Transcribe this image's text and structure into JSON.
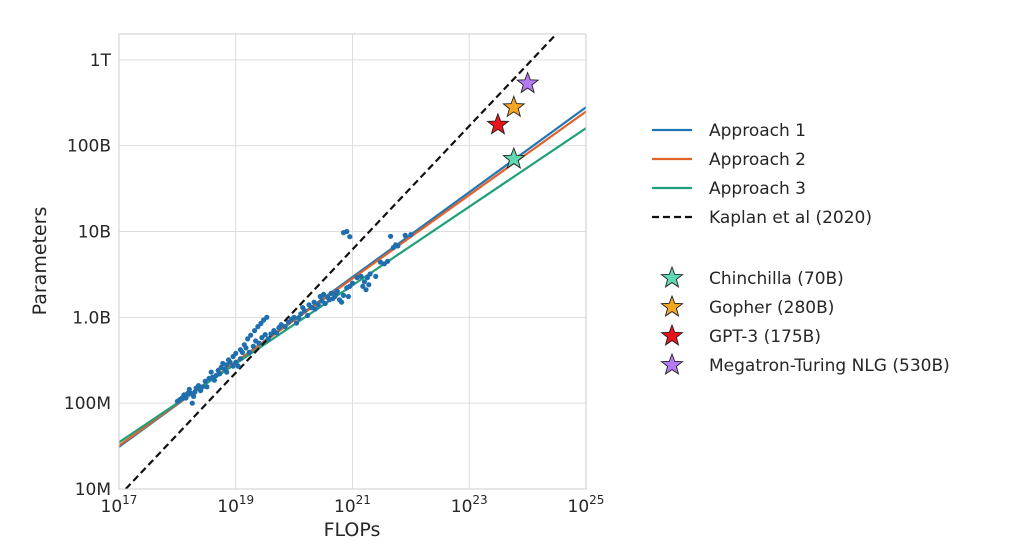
{
  "chart_data": {
    "type": "scatter",
    "xlabel": "FLOPs",
    "ylabel": "Parameters",
    "x_scale": "log",
    "y_scale": "log",
    "xlim": [
      1e+17,
      1e+25
    ],
    "ylim": [
      10000000.0,
      2000000000000.0
    ],
    "grid": true,
    "x_ticks": [
      {
        "value": 1e+17,
        "base": "10",
        "exp": "17"
      },
      {
        "value": 1e+19,
        "base": "10",
        "exp": "19"
      },
      {
        "value": 1e+21,
        "base": "10",
        "exp": "21"
      },
      {
        "value": 1e+23,
        "base": "10",
        "exp": "23"
      },
      {
        "value": 1e+25,
        "base": "10",
        "exp": "25"
      }
    ],
    "y_ticks": [
      {
        "value": 10000000.0,
        "label": "10M"
      },
      {
        "value": 100000000.0,
        "label": "100M"
      },
      {
        "value": 1000000000.0,
        "label": "1.0B"
      },
      {
        "value": 10000000000.0,
        "label": "10B"
      },
      {
        "value": 100000000000.0,
        "label": "100B"
      },
      {
        "value": 1000000000000.0,
        "label": "1T"
      }
    ],
    "lines": [
      {
        "name": "Approach 1",
        "color": "#1f77b4",
        "dash": "solid",
        "points": [
          [
            1e+17,
            31000000.0
          ],
          [
            1e+25,
            280000000000.0
          ]
        ]
      },
      {
        "name": "Approach 2",
        "color": "#e1612b",
        "dash": "solid",
        "points": [
          [
            1e+17,
            32000000.0
          ],
          [
            1e+25,
            250000000000.0
          ]
        ]
      },
      {
        "name": "Approach 3",
        "color": "#20a07a",
        "dash": "solid",
        "points": [
          [
            1e+17,
            35000000.0
          ],
          [
            1e+25,
            160000000000.0
          ]
        ]
      },
      {
        "name": "Kaplan et al (2020)",
        "color": "#111111",
        "dash": "dashed",
        "points": [
          [
            1.3e+17,
            10000000.0
          ],
          [
            3e+24,
            1950000000000.0
          ]
        ]
      }
    ],
    "scatter_series": {
      "color": "#1f6fae",
      "points": [
        [
          1e+18,
          105000000.0
        ],
        [
          1.1e+18,
          110000000.0
        ],
        [
          1.2e+18,
          115000000.0
        ],
        [
          1.3e+18,
          125000000.0
        ],
        [
          1.4e+18,
          115000000.0
        ],
        [
          1.5e+18,
          130000000.0
        ],
        [
          1.6e+18,
          145000000.0
        ],
        [
          1.7e+18,
          130000000.0
        ],
        [
          1.8e+18,
          100000000.0
        ],
        [
          1.9e+18,
          120000000.0
        ],
        [
          2e+18,
          135000000.0
        ],
        [
          2.1e+18,
          150000000.0
        ],
        [
          2.3e+18,
          160000000.0
        ],
        [
          2.5e+18,
          140000000.0
        ],
        [
          2.7e+18,
          155000000.0
        ],
        [
          3e+18,
          180000000.0
        ],
        [
          3.2e+18,
          155000000.0
        ],
        [
          3.5e+18,
          195000000.0
        ],
        [
          3.8e+18,
          230000000.0
        ],
        [
          4e+18,
          200000000.0
        ],
        [
          4.3e+18,
          185000000.0
        ],
        [
          4.6e+18,
          210000000.0
        ],
        [
          5e+18,
          240000000.0
        ],
        [
          5.3e+18,
          220000000.0
        ],
        [
          5.6e+18,
          260000000.0
        ],
        [
          6e+18,
          290000000.0
        ],
        [
          6.5e+18,
          250000000.0
        ],
        [
          7e+18,
          280000000.0
        ],
        [
          7.5e+18,
          320000000.0
        ],
        [
          8e+18,
          300000000.0
        ],
        [
          9e+18,
          270000000.0
        ],
        [
          1e+19,
          300000000.0
        ],
        [
          1.1e+19,
          270000000.0
        ],
        [
          1.2e+19,
          330000000.0
        ],
        [
          1.3e+19,
          390000000.0
        ],
        [
          1.5e+19,
          440000000.0
        ],
        [
          1.7e+19,
          390000000.0
        ],
        [
          2e+19,
          460000000.0
        ],
        [
          2.2e+19,
          530000000.0
        ],
        [
          2.5e+19,
          500000000.0
        ],
        [
          2.8e+19,
          580000000.0
        ],
        [
          3.2e+19,
          630000000.0
        ],
        [
          3.6e+19,
          560000000.0
        ],
        [
          4e+19,
          640000000.0
        ],
        [
          4.5e+19,
          700000000.0
        ],
        [
          5e+19,
          660000000.0
        ],
        [
          5.5e+19,
          760000000.0
        ],
        [
          6e+19,
          820000000.0
        ],
        [
          7e+19,
          780000000.0
        ],
        [
          8e+19,
          880000000.0
        ],
        [
          9e+19,
          950000000.0
        ],
        [
          1e+20,
          1000000000.0
        ],
        [
          1.1e+20,
          860000000.0
        ],
        [
          1.2e+20,
          980000000.0
        ],
        [
          1.3e+20,
          1100000000.0
        ],
        [
          1.5e+20,
          1200000000.0
        ],
        [
          1.7e+20,
          1050000000.0
        ],
        [
          2e+20,
          1300000000.0
        ],
        [
          2.3e+20,
          1250000000.0
        ],
        [
          2.6e+20,
          1400000000.0
        ],
        [
          3e+20,
          1550000000.0
        ],
        [
          3.4e+20,
          1450000000.0
        ],
        [
          3.8e+20,
          1700000000.0
        ],
        [
          4.3e+20,
          1900000000.0
        ],
        [
          5e+20,
          1750000000.0
        ],
        [
          5.5e+20,
          2000000000.0
        ],
        [
          6e+20,
          1600000000.0
        ],
        [
          7e+20,
          1800000000.0
        ],
        [
          8e+20,
          2200000000.0
        ],
        [
          9e+20,
          2300000000.0
        ],
        [
          1e+21,
          2500000000.0
        ],
        [
          1.2e+21,
          2900000000.0
        ],
        [
          1.4e+21,
          3000000000.0
        ],
        [
          1.6e+21,
          2600000000.0
        ],
        [
          1.8e+21,
          2900000000.0
        ],
        [
          2e+21,
          3200000000.0
        ],
        [
          1.2e+19,
          420000000.0
        ],
        [
          1.4e+19,
          480000000.0
        ],
        [
          1.6e+19,
          560000000.0
        ],
        [
          1.8e+19,
          620000000.0
        ],
        [
          2.1e+19,
          700000000.0
        ],
        [
          2.4e+19,
          780000000.0
        ],
        [
          2.7e+19,
          850000000.0
        ],
        [
          3e+19,
          930000000.0
        ],
        [
          3.4e+19,
          1000000000.0
        ],
        [
          7e+18,
          230000000.0
        ],
        [
          9e+18,
          350000000.0
        ],
        [
          1e+19,
          380000000.0
        ],
        [
          1.4e+20,
          1300000000.0
        ],
        [
          1.8e+20,
          1400000000.0
        ],
        [
          2.2e+20,
          1500000000.0
        ],
        [
          2.8e+20,
          1750000000.0
        ],
        [
          3.2e+20,
          1850000000.0
        ],
        [
          6.5e+20,
          1500000000.0
        ],
        [
          8.5e+20,
          1750000000.0
        ],
        [
          1.5e+21,
          2300000000.0
        ],
        [
          1.7e+21,
          2100000000.0
        ],
        [
          1.9e+21,
          2400000000.0
        ],
        [
          2.5e+21,
          3000000000.0
        ],
        [
          3e+21,
          4400000000.0
        ],
        [
          3.5e+21,
          4200000000.0
        ],
        [
          4e+21,
          4500000000.0
        ],
        [
          5e+21,
          6500000000.0
        ],
        [
          5.5e+21,
          7000000000.0
        ],
        [
          6e+21,
          6800000000.0
        ],
        [
          8e+21,
          9000000000.0
        ],
        [
          1e+22,
          9200000000.0
        ],
        [
          7e+20,
          9700000000.0
        ],
        [
          8e+20,
          10000000000.0
        ],
        [
          9e+20,
          8700000000.0
        ],
        [
          4.5e+21,
          8800000000.0
        ],
        [
          4e+20,
          1600000000.0
        ],
        [
          4.6e+20,
          1650000000.0
        ],
        [
          5.2e+20,
          1900000000.0
        ]
      ]
    },
    "markers": [
      {
        "name": "Chinchilla (70B)",
        "x": 5.8e+23,
        "y": 70000000000.0,
        "color": "#5fd9b3"
      },
      {
        "name": "Gopher (280B)",
        "x": 5.8e+23,
        "y": 280000000000.0,
        "color": "#f5a623"
      },
      {
        "name": "GPT-3 (175B)",
        "x": 3.1e+23,
        "y": 175000000000.0,
        "color": "#e8161b"
      },
      {
        "name": "Megatron-Turing NLG (530B)",
        "x": 1e+24,
        "y": 530000000000.0,
        "color": "#b57bf2"
      }
    ]
  }
}
